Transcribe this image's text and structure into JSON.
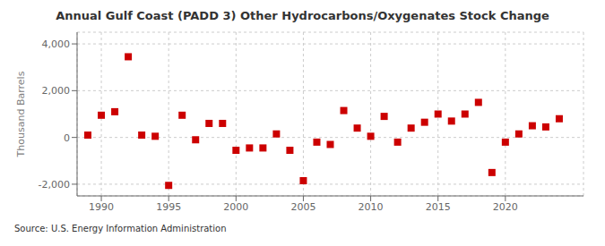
{
  "chart_data": {
    "type": "scatter",
    "title": "Annual Gulf Coast (PADD 3) Other Hydrocarbons/Oxygenates Stock Change",
    "ylabel": "Thousand Barrels",
    "annotations": [
      "Source: U.S. Energy Information Administration"
    ],
    "color": "#cc0000",
    "marker": "square",
    "grid": true,
    "xlim": [
      1988.2,
      2025.8
    ],
    "xticks": [
      1990,
      1995,
      2000,
      2005,
      2010,
      2015,
      2020
    ],
    "ylim": [
      -2500,
      4500
    ],
    "yticks": [
      {
        "value": -2000,
        "label": "-2,000"
      },
      0,
      {
        "value": 2000,
        "label": "2,000"
      },
      {
        "value": 4000,
        "label": "4,000"
      }
    ],
    "x": [
      1989,
      1990,
      1991,
      1992,
      1993,
      1994,
      1995,
      1996,
      1997,
      1998,
      1999,
      2000,
      2001,
      2002,
      2003,
      2004,
      2005,
      2006,
      2007,
      2008,
      2009,
      2010,
      2011,
      2012,
      2013,
      2014,
      2015,
      2016,
      2017,
      2018,
      2019,
      2020,
      2021,
      2022,
      2023,
      2024
    ],
    "values": [
      100,
      950,
      1100,
      3450,
      100,
      50,
      -2050,
      950,
      -100,
      600,
      600,
      -550,
      -450,
      -450,
      150,
      -550,
      -1850,
      -200,
      -300,
      1150,
      400,
      50,
      900,
      -200,
      400,
      650,
      1000,
      700,
      1000,
      1500,
      -1500,
      -200,
      150,
      500,
      450,
      800
    ]
  }
}
